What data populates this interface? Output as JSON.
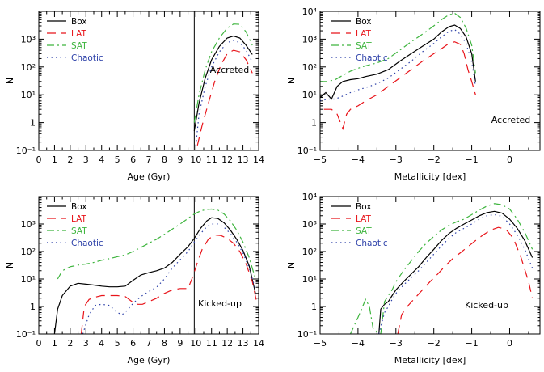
{
  "colors": {
    "Box": "#000000",
    "LAT": "#e8141a",
    "SAT": "#3fb53f",
    "Chaotic": "#2b3fa8"
  },
  "chart_data": [
    {
      "type": "line",
      "xlabel": "Age (Gyr)",
      "ylabel": "N",
      "annotation": "Accreted",
      "xlim": [
        0,
        14
      ],
      "ylim": [
        0.1,
        10000
      ],
      "yscale": "log",
      "vline": 9.9,
      "xticks": [
        "0",
        "1",
        "2",
        "3",
        "4",
        "5",
        "6",
        "7",
        "8",
        "9",
        "10",
        "11",
        "12",
        "13",
        "14"
      ],
      "yticks": [
        "10⁻¹",
        "1",
        "10¹",
        "10²",
        "10³"
      ],
      "legend": [
        "Box",
        "LAT",
        "SAT",
        "Chaotic"
      ],
      "series": [
        {
          "name": "Box",
          "x": [
            9.9,
            10.2,
            10.6,
            11.0,
            11.5,
            12.0,
            12.4,
            12.8,
            13.2,
            13.6
          ],
          "y": [
            0.5,
            5,
            40,
            180,
            550,
            1100,
            1300,
            1100,
            600,
            280
          ]
        },
        {
          "name": "LAT",
          "x": [
            10.1,
            10.4,
            10.8,
            11.2,
            11.6,
            12.0,
            12.4,
            12.8,
            13.2,
            13.6
          ],
          "y": [
            0.15,
            0.8,
            5,
            30,
            120,
            300,
            400,
            350,
            180,
            60
          ]
        },
        {
          "name": "SAT",
          "x": [
            9.9,
            10.2,
            10.6,
            11.0,
            11.5,
            12.0,
            12.4,
            12.8,
            13.2,
            13.6
          ],
          "y": [
            1,
            10,
            80,
            350,
            1100,
            2500,
            3500,
            3400,
            1800,
            600
          ]
        },
        {
          "name": "Chaotic",
          "x": [
            10.0,
            10.2,
            10.6,
            11.0,
            11.5,
            12.0,
            12.4,
            12.8,
            13.2,
            13.6
          ],
          "y": [
            0.15,
            2,
            20,
            100,
            350,
            750,
            900,
            750,
            400,
            150
          ]
        }
      ]
    },
    {
      "type": "line",
      "xlabel": "Metallicity [dex]",
      "ylabel": "N",
      "annotation": "Accreted",
      "xlim": [
        -5,
        0.8
      ],
      "ylim": [
        0.1,
        10000
      ],
      "yscale": "log",
      "xticks": [
        "−5",
        "−4",
        "−3",
        "−2",
        "−1",
        "0"
      ],
      "yticks": [
        "10⁻¹",
        "1",
        "10¹",
        "10²",
        "10³",
        "10⁴"
      ],
      "legend": [
        "Box",
        "LAT",
        "SAT",
        "Chaotic"
      ],
      "series": [
        {
          "name": "Box",
          "x": [
            -5,
            -4.85,
            -4.7,
            -4.55,
            -4.4,
            -4.2,
            -4.0,
            -3.8,
            -3.5,
            -3.2,
            -2.9,
            -2.6,
            -2.3,
            -2.0,
            -1.8,
            -1.6,
            -1.45,
            -1.3,
            -1.15,
            -1.0,
            -0.9
          ],
          "y": [
            8,
            12,
            7,
            20,
            30,
            35,
            38,
            45,
            55,
            80,
            160,
            300,
            550,
            1000,
            1800,
            2800,
            3200,
            2400,
            1200,
            300,
            30
          ]
        },
        {
          "name": "LAT",
          "x": [
            -4.9,
            -4.7,
            -4.55,
            -4.4,
            -4.3,
            -4.2,
            -4.0,
            -3.8,
            -3.5,
            -3.2,
            -2.9,
            -2.6,
            -2.3,
            -2.0,
            -1.8,
            -1.6,
            -1.45,
            -1.3,
            -1.2,
            -1.1,
            -1.0,
            -0.9
          ],
          "y": [
            3,
            3,
            2,
            0.6,
            2,
            3,
            4,
            6,
            10,
            20,
            40,
            80,
            160,
            300,
            450,
            700,
            800,
            650,
            300,
            80,
            30,
            10
          ]
        },
        {
          "name": "SAT",
          "x": [
            -5,
            -4.8,
            -4.6,
            -4.4,
            -4.2,
            -4.0,
            -3.8,
            -3.5,
            -3.2,
            -2.9,
            -2.6,
            -2.3,
            -2.0,
            -1.8,
            -1.6,
            -1.45,
            -1.3,
            -1.15,
            -1.0,
            -0.9
          ],
          "y": [
            30,
            30,
            35,
            50,
            70,
            90,
            110,
            140,
            200,
            400,
            800,
            1500,
            3000,
            5000,
            7500,
            8500,
            6000,
            2500,
            600,
            60
          ]
        },
        {
          "name": "Chaotic",
          "x": [
            -5,
            -4.8,
            -4.6,
            -4.4,
            -4.2,
            -4.0,
            -3.8,
            -3.5,
            -3.2,
            -2.9,
            -2.6,
            -2.3,
            -2.0,
            -1.8,
            -1.6,
            -1.45,
            -1.3,
            -1.15,
            -1.0,
            -0.9
          ],
          "y": [
            6,
            7,
            7,
            9,
            12,
            15,
            18,
            25,
            40,
            80,
            160,
            350,
            700,
            1200,
            1900,
            2200,
            1500,
            700,
            150,
            20
          ]
        }
      ]
    },
    {
      "type": "line",
      "xlabel": "Age (Gyr)",
      "ylabel": "N",
      "annotation": "Kicked-up",
      "xlim": [
        0,
        14
      ],
      "ylim": [
        0.1,
        10000
      ],
      "yscale": "log",
      "vline": 9.9,
      "xticks": [
        "0",
        "1",
        "2",
        "3",
        "4",
        "5",
        "6",
        "7",
        "8",
        "9",
        "10",
        "11",
        "12",
        "13",
        "14"
      ],
      "yticks": [
        "10⁻¹",
        "1",
        "10¹",
        "10²",
        "10³"
      ],
      "legend": [
        "Box",
        "LAT",
        "SAT",
        "Chaotic"
      ],
      "series": [
        {
          "name": "Box",
          "x": [
            1.0,
            1.2,
            1.5,
            2.0,
            2.5,
            3.0,
            3.5,
            4.0,
            4.5,
            5.0,
            5.5,
            6.0,
            6.5,
            7.0,
            7.5,
            8.0,
            8.5,
            9.0,
            9.5,
            9.9,
            10.3,
            10.7,
            11.0,
            11.4,
            11.8,
            12.2,
            12.6,
            13.0,
            13.4,
            13.8
          ],
          "y": [
            0.1,
            0.8,
            2.5,
            5.5,
            7,
            6.5,
            6,
            5.5,
            5.2,
            5.2,
            5.5,
            9,
            14,
            17,
            20,
            25,
            40,
            80,
            150,
            300,
            700,
            1300,
            1700,
            1600,
            1100,
            600,
            280,
            110,
            30,
            3
          ]
        },
        {
          "name": "LAT",
          "x": [
            2.7,
            2.9,
            3.2,
            3.6,
            4.0,
            4.5,
            5.0,
            5.5,
            6.0,
            6.3,
            6.6,
            7.0,
            7.5,
            8.0,
            8.5,
            9.0,
            9.5,
            9.8,
            10.1,
            10.4,
            10.8,
            11.2,
            11.6,
            12.0,
            12.4,
            12.8,
            13.2,
            13.6,
            13.9
          ],
          "y": [
            0.1,
            1,
            1.8,
            2.2,
            2.5,
            2.5,
            2.5,
            2.3,
            1.4,
            1.2,
            1.2,
            1.5,
            2,
            3,
            4,
            4.5,
            4.5,
            12,
            40,
            120,
            280,
            400,
            380,
            300,
            200,
            100,
            35,
            8,
            1.2
          ]
        },
        {
          "name": "SAT",
          "x": [
            1.2,
            1.5,
            2.0,
            2.5,
            3.0,
            3.5,
            4.0,
            4.5,
            5.0,
            5.5,
            6.0,
            6.5,
            7.0,
            7.5,
            8.0,
            8.5,
            9.0,
            9.5,
            9.9,
            10.3,
            10.7,
            11.0,
            11.4,
            11.8,
            12.2,
            12.6,
            13.0,
            13.4,
            13.8
          ],
          "y": [
            10,
            20,
            28,
            32,
            35,
            40,
            48,
            55,
            65,
            75,
            100,
            140,
            200,
            280,
            420,
            650,
            1000,
            1600,
            2300,
            3000,
            3400,
            3500,
            3200,
            2300,
            1300,
            600,
            220,
            60,
            10
          ]
        },
        {
          "name": "Chaotic",
          "x": [
            2.8,
            3.2,
            3.6,
            4.0,
            4.5,
            5.0,
            5.3,
            5.6,
            6.0,
            6.5,
            7.0,
            7.5,
            8.0,
            8.5,
            9.0,
            9.5,
            9.9,
            10.3,
            10.7,
            11.0,
            11.4,
            11.8,
            12.2,
            12.6,
            13.0,
            13.4,
            13.8
          ],
          "y": [
            0.1,
            0.5,
            1.1,
            1.2,
            1.1,
            0.6,
            0.5,
            0.7,
            1.3,
            2.3,
            3.5,
            5,
            10,
            25,
            50,
            100,
            220,
            450,
            800,
            1000,
            1000,
            750,
            450,
            220,
            90,
            25,
            4
          ]
        }
      ]
    },
    {
      "type": "line",
      "xlabel": "Metallicity [dex]",
      "ylabel": "N",
      "annotation": "Kicked-up",
      "xlim": [
        -5,
        0.8
      ],
      "ylim": [
        0.1,
        10000
      ],
      "yscale": "log",
      "xticks": [
        "−5",
        "−4",
        "−3",
        "−2",
        "−1",
        "0"
      ],
      "yticks": [
        "10⁻¹",
        "1",
        "10¹",
        "10²",
        "10³",
        "10⁴"
      ],
      "legend": [
        "Box",
        "LAT",
        "SAT",
        "Chaotic"
      ],
      "series": [
        {
          "name": "Box",
          "x": [
            -3.45,
            -3.4,
            -3.3,
            -3.2,
            -3.1,
            -3.0,
            -2.8,
            -2.6,
            -2.4,
            -2.2,
            -2.0,
            -1.8,
            -1.6,
            -1.4,
            -1.2,
            -1.0,
            -0.8,
            -0.6,
            -0.4,
            -0.2,
            0.0,
            0.2,
            0.4,
            0.6
          ],
          "y": [
            0.1,
            0.8,
            1.2,
            1.5,
            2.5,
            4,
            8,
            15,
            28,
            60,
            120,
            250,
            450,
            700,
            1000,
            1400,
            2000,
            2600,
            2900,
            2500,
            1500,
            700,
            250,
            60
          ]
        },
        {
          "name": "LAT",
          "x": [
            -2.95,
            -2.85,
            -2.7,
            -2.5,
            -2.3,
            -2.1,
            -1.9,
            -1.7,
            -1.5,
            -1.3,
            -1.1,
            -0.9,
            -0.7,
            -0.5,
            -0.3,
            -0.1,
            0.1,
            0.3,
            0.5,
            0.6
          ],
          "y": [
            0.1,
            0.5,
            1,
            2,
            4,
            8,
            15,
            30,
            55,
            90,
            150,
            250,
            400,
            600,
            750,
            650,
            300,
            60,
            8,
            2
          ]
        },
        {
          "name": "SAT",
          "x": [
            -4.2,
            -4.0,
            -3.8,
            -3.7,
            -3.6,
            -3.4,
            -3.3,
            -3.2,
            -3.1,
            -3.0,
            -2.8,
            -2.6,
            -2.4,
            -2.2,
            -2.0,
            -1.8,
            -1.6,
            -1.4,
            -1.2,
            -1.0,
            -0.8,
            -0.6,
            -0.4,
            -0.2,
            0.0,
            0.2,
            0.4,
            0.6
          ],
          "y": [
            0.1,
            0.4,
            1.8,
            1,
            0.15,
            0.1,
            1.5,
            2.5,
            4,
            8,
            20,
            45,
            100,
            200,
            350,
            600,
            900,
            1200,
            1500,
            2200,
            3200,
            4500,
            5500,
            5000,
            3500,
            1500,
            500,
            120
          ]
        },
        {
          "name": "Chaotic",
          "x": [
            -3.45,
            -3.3,
            -3.2,
            -3.1,
            -3.0,
            -2.8,
            -2.6,
            -2.4,
            -2.2,
            -2.0,
            -1.8,
            -1.6,
            -1.4,
            -1.2,
            -1.0,
            -0.8,
            -0.6,
            -0.4,
            -0.2,
            0.0,
            0.2,
            0.4,
            0.6
          ],
          "y": [
            0.1,
            0.6,
            1,
            1.8,
            3,
            6,
            11,
            20,
            40,
            80,
            160,
            300,
            500,
            700,
            1000,
            1500,
            2000,
            2200,
            1900,
            1000,
            400,
            120,
            25
          ]
        }
      ]
    }
  ]
}
